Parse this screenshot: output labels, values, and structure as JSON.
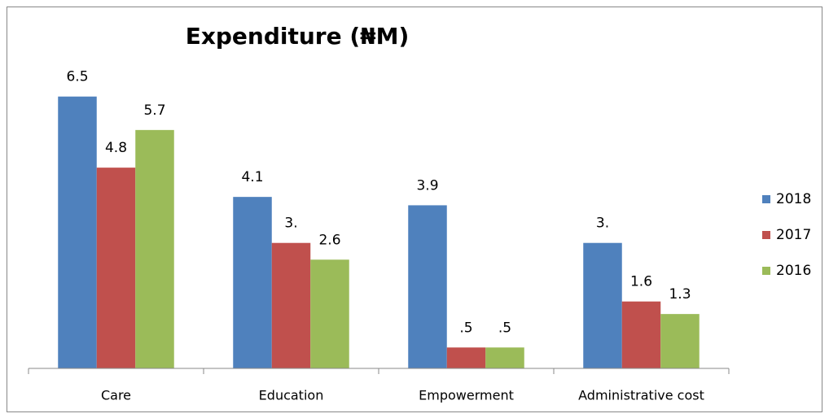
{
  "chart_data": {
    "type": "bar",
    "title": "Expenditure (₦M)",
    "categories": [
      "Care",
      "Education",
      "Empowerment",
      "Administrative cost"
    ],
    "series": [
      {
        "name": "2018",
        "color": "#4f81bd",
        "values": [
          6.5,
          4.1,
          3.9,
          3
        ],
        "value_labels": [
          "6.5",
          "4.1",
          "3.9",
          "3."
        ]
      },
      {
        "name": "2017",
        "color": "#c0504d",
        "values": [
          4.8,
          3,
          0.5,
          1.6
        ],
        "value_labels": [
          "4.8",
          "3.",
          ".5",
          "1.6"
        ]
      },
      {
        "name": "2016",
        "color": "#9bbb59",
        "values": [
          5.7,
          2.6,
          0.5,
          1.3
        ],
        "value_labels": [
          "5.7",
          "2.6",
          ".5",
          "1.3"
        ]
      }
    ],
    "ylim": [
      0,
      7
    ],
    "legend": "right"
  }
}
